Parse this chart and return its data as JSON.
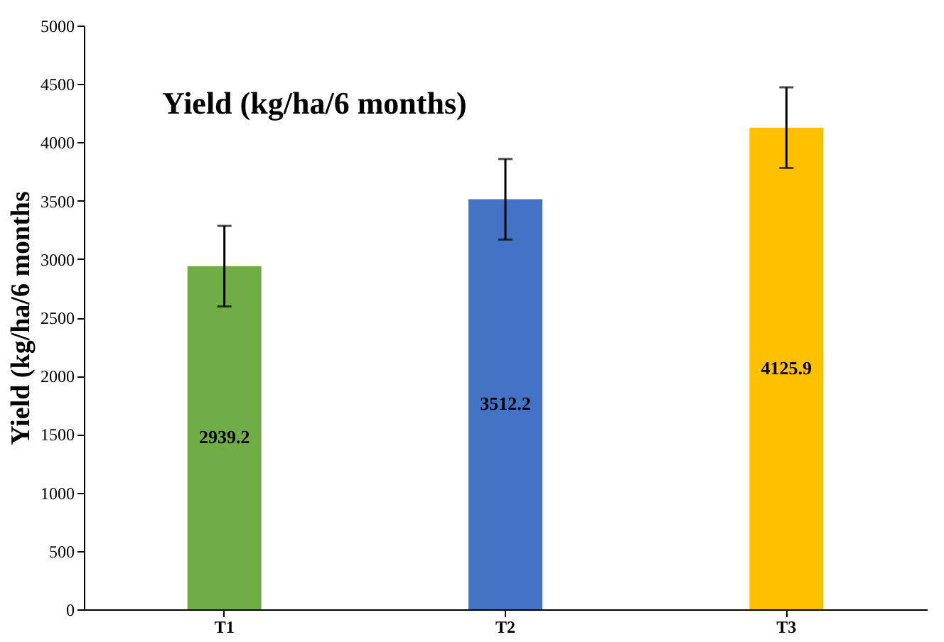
{
  "chart_data": {
    "type": "bar",
    "title": "Yield (kg/ha/6 months)",
    "ylabel": "Yield (kg/ha/6 months",
    "categories": [
      "T1",
      "T2",
      "T3"
    ],
    "values": [
      2939.2,
      3512.2,
      4125.9
    ],
    "colors": [
      "#70ad47",
      "#4472c4",
      "#ffc000"
    ],
    "errors": [
      345,
      345,
      345
    ],
    "ylim": [
      0,
      5000
    ],
    "yticks": [
      0,
      500,
      1000,
      1500,
      2000,
      2500,
      3000,
      3500,
      4000,
      4500,
      5000
    ],
    "grid": false,
    "data_labels": true
  }
}
